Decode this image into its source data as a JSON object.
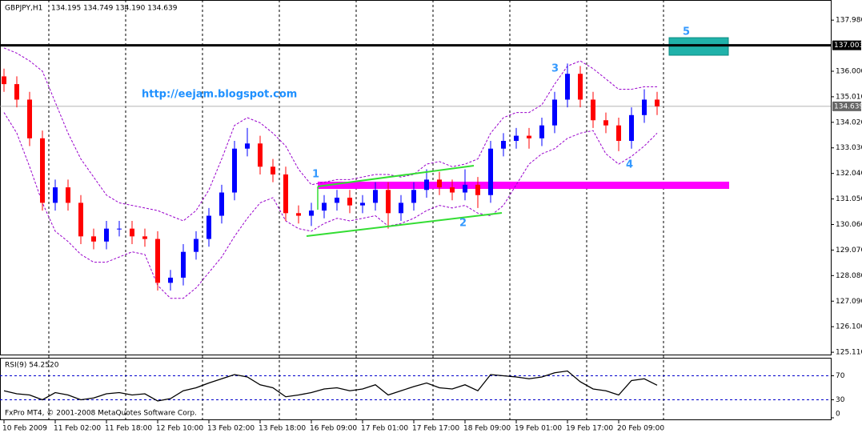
{
  "chart_data": {
    "type": "candlestick",
    "title": "GBPJPY,H1",
    "ohlc_text": "134.195 134.749 134.190 134.639",
    "watermark": "http://eejam.blogspot.com",
    "copyright": "FxPro MT4, © 2001-2008 MetaQuotes Software Corp.",
    "categories": [
      "10 Feb 2009",
      null,
      null,
      null,
      "11 Feb 02:00",
      null,
      null,
      null,
      "11 Feb 18:00",
      null,
      null,
      null,
      "12 Feb 10:00",
      null,
      null,
      null,
      "13 Feb 02:00",
      null,
      null,
      null,
      "13 Feb 18:00",
      null,
      null,
      null,
      "16 Feb 09:00",
      null,
      null,
      null,
      "17 Feb 01:00",
      null,
      null,
      null,
      "17 Feb 17:00",
      null,
      null,
      null,
      "18 Feb 09:00",
      null,
      null,
      null,
      "19 Feb 01:00",
      null,
      null,
      null,
      "19 Feb 17:00",
      null,
      null,
      null,
      "20 Feb 09:00",
      null,
      null,
      null
    ],
    "open": [
      135.8,
      135.5,
      134.9,
      133.4,
      130.9,
      131.5,
      130.9,
      129.6,
      129.4,
      129.9,
      129.9,
      129.6,
      129.5,
      127.8,
      128.0,
      129.0,
      129.5,
      130.4,
      131.3,
      133.0,
      133.2,
      132.3,
      132.0,
      130.5,
      130.4,
      130.6,
      130.9,
      131.1,
      130.8,
      130.9,
      131.4,
      130.5,
      130.9,
      131.4,
      131.8,
      131.5,
      131.3,
      131.6,
      131.2,
      133.0,
      133.3,
      133.5,
      133.4,
      133.9,
      134.9,
      135.9,
      134.9,
      134.1,
      133.9,
      133.3,
      134.3,
      134.9
    ],
    "high": [
      136.1,
      135.8,
      135.2,
      133.7,
      131.8,
      131.8,
      131.2,
      129.9,
      130.2,
      130.2,
      130.2,
      129.9,
      129.8,
      128.3,
      129.3,
      129.8,
      130.7,
      131.6,
      133.3,
      133.8,
      133.5,
      132.6,
      132.3,
      130.8,
      130.9,
      131.2,
      131.4,
      131.4,
      131.2,
      131.7,
      131.7,
      131.2,
      131.7,
      132.2,
      132.1,
      131.8,
      132.2,
      131.9,
      133.3,
      133.6,
      133.8,
      133.8,
      134.2,
      135.2,
      136.3,
      136.2,
      135.2,
      134.4,
      134.2,
      134.6,
      135.3,
      135.2
    ],
    "low": [
      135.2,
      134.6,
      133.1,
      130.6,
      130.6,
      130.6,
      129.3,
      129.1,
      129.1,
      129.6,
      129.3,
      129.2,
      127.5,
      127.5,
      127.7,
      128.7,
      129.2,
      130.1,
      131.0,
      132.7,
      132.0,
      131.7,
      130.2,
      130.1,
      130.0,
      130.3,
      130.6,
      130.5,
      130.5,
      130.6,
      129.9,
      130.2,
      130.6,
      131.1,
      131.2,
      131.0,
      131.0,
      130.7,
      130.9,
      132.7,
      133.0,
      133.0,
      133.1,
      133.6,
      134.6,
      134.6,
      133.8,
      133.6,
      132.9,
      133.0,
      134.0,
      134.3
    ],
    "close": [
      135.5,
      134.9,
      133.4,
      130.9,
      131.5,
      130.9,
      129.6,
      129.4,
      129.9,
      129.9,
      129.6,
      129.5,
      127.8,
      128.0,
      129.0,
      129.5,
      130.4,
      131.3,
      133.0,
      133.2,
      132.3,
      132.0,
      130.5,
      130.4,
      130.6,
      130.9,
      131.1,
      130.8,
      130.9,
      131.4,
      130.5,
      130.9,
      131.4,
      131.8,
      131.5,
      131.3,
      131.6,
      131.2,
      133.0,
      133.3,
      133.5,
      133.4,
      133.9,
      134.9,
      135.9,
      134.9,
      134.1,
      133.9,
      133.3,
      134.3,
      134.9,
      134.639
    ],
    "up_color": "#0000ff",
    "down_color": "#ff0000",
    "bands": [
      {
        "color": "#9900cc",
        "values": [
          136.9,
          136.7,
          136.4,
          136.0,
          134.8,
          133.6,
          132.6,
          131.9,
          131.2,
          130.9,
          130.8,
          130.7,
          130.6,
          130.4,
          130.2,
          130.6,
          131.4,
          132.6,
          133.9,
          134.2,
          134.0,
          133.6,
          133.1,
          132.2,
          131.6,
          131.7,
          131.8,
          131.8,
          131.9,
          132.0,
          132.0,
          131.9,
          132.0,
          132.4,
          132.5,
          132.3,
          132.4,
          132.6,
          133.6,
          134.2,
          134.4,
          134.4,
          134.7,
          135.5,
          136.2,
          136.4,
          136.1,
          135.7,
          135.3,
          135.3,
          135.4,
          135.4
        ]
      },
      {
        "color": "#9900cc",
        "values": [
          134.4,
          133.6,
          132.3,
          130.9,
          129.8,
          129.4,
          128.9,
          128.6,
          128.6,
          128.8,
          129.0,
          128.9,
          127.7,
          127.2,
          127.2,
          127.6,
          128.2,
          128.8,
          129.6,
          130.3,
          130.9,
          131.1,
          130.2,
          129.9,
          129.8,
          130.1,
          130.3,
          130.2,
          130.3,
          130.4,
          130.0,
          130.1,
          130.3,
          130.6,
          130.8,
          130.7,
          130.8,
          130.5,
          130.4,
          130.8,
          131.6,
          132.4,
          132.8,
          133.0,
          133.4,
          133.6,
          133.7,
          132.8,
          132.4,
          132.7,
          133.1,
          133.6
        ]
      }
    ],
    "ylim": [
      125.02,
      138.76
    ],
    "yticks": [
      {
        "value": 137.98,
        "label": "137.980"
      },
      {
        "value": 136.0,
        "label": "136.000"
      },
      {
        "value": 135.01,
        "label": "135.010"
      },
      {
        "value": 134.02,
        "label": "134.020"
      },
      {
        "value": 133.03,
        "label": "133.030"
      },
      {
        "value": 132.04,
        "label": "132.040"
      },
      {
        "value": 131.05,
        "label": "131.050"
      },
      {
        "value": 130.06,
        "label": "130.060"
      },
      {
        "value": 129.07,
        "label": "129.070"
      },
      {
        "value": 128.08,
        "label": "128.080"
      },
      {
        "value": 127.09,
        "label": "127.090"
      },
      {
        "value": 126.1,
        "label": "126.100"
      },
      {
        "value": 125.11,
        "label": "125.110"
      }
    ],
    "level_line": {
      "value": 137.003,
      "label": "137.003"
    },
    "current_price": {
      "value": 134.639,
      "label": "134.639"
    },
    "zone": {
      "low": 131.44,
      "high": 131.72,
      "color": "#ff00ff"
    },
    "target_box": {
      "low": 136.62,
      "high": 137.3,
      "color": "#20b2aa"
    },
    "annotations": [
      "1",
      "2",
      "3",
      "4",
      "5"
    ],
    "rsi": {
      "title": "RSI(9) 54.2520",
      "ylim": [
        0,
        100
      ],
      "yticks": [
        70,
        30,
        0
      ],
      "levels": [
        70,
        30
      ],
      "values": [
        45,
        40,
        38,
        30,
        42,
        38,
        30,
        33,
        40,
        42,
        38,
        40,
        28,
        32,
        45,
        50,
        58,
        65,
        72,
        68,
        55,
        50,
        35,
        38,
        42,
        48,
        50,
        45,
        48,
        55,
        38,
        45,
        52,
        58,
        50,
        48,
        55,
        45,
        72,
        70,
        68,
        65,
        68,
        75,
        78,
        60,
        48,
        45,
        38,
        62,
        65,
        54.25
      ]
    }
  }
}
